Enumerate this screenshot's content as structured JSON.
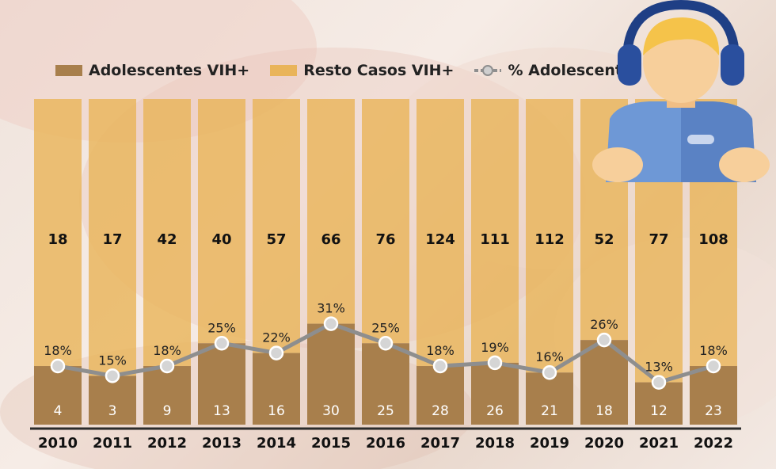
{
  "legend": {
    "adolescentes_label": "Adolescentes VIH+",
    "resto_label": "Resto Casos VIH+",
    "pct_label": "% Adolescentes"
  },
  "colors": {
    "adolescentes": "#a87f4c",
    "resto": "#e9b45a",
    "line": "#8e8e8e",
    "marker_fill": "#d5d5d5"
  },
  "chart_data": {
    "type": "bar",
    "stacked": true,
    "categories": [
      "2010",
      "2011",
      "2012",
      "2013",
      "2014",
      "2015",
      "2016",
      "2017",
      "2018",
      "2019",
      "2020",
      "2021",
      "2022"
    ],
    "series": [
      {
        "name": "Adolescentes VIH+",
        "values": [
          4,
          3,
          9,
          13,
          16,
          30,
          25,
          28,
          26,
          21,
          18,
          12,
          23
        ]
      },
      {
        "name": "Resto Casos VIH+",
        "values": [
          18,
          17,
          42,
          40,
          57,
          66,
          76,
          124,
          111,
          112,
          52,
          77,
          108
        ]
      }
    ],
    "line_series": {
      "name": "% Adolescentes",
      "values": [
        18,
        15,
        18,
        25,
        22,
        31,
        25,
        18,
        19,
        16,
        26,
        13,
        18
      ],
      "labels": [
        "18%",
        "15%",
        "18%",
        "25%",
        "22%",
        "31%",
        "25%",
        "18%",
        "19%",
        "16%",
        "26%",
        "13%",
        "18%"
      ]
    },
    "legend_position": "top-left"
  }
}
